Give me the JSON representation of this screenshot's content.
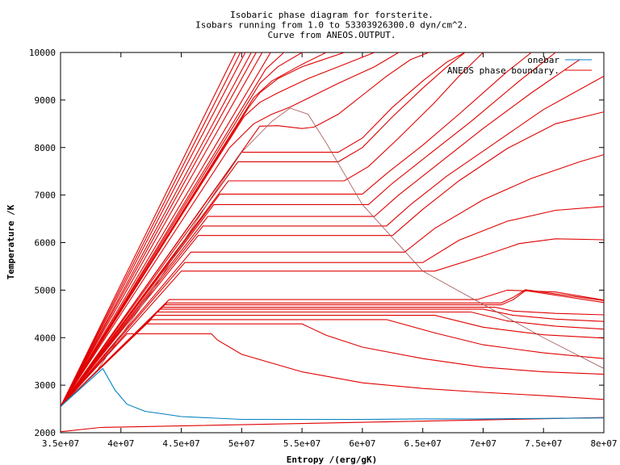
{
  "chart_data": {
    "type": "line",
    "title": [
      "Isobaric phase diagram for forsterite.",
      "Isobars running from 1.0 to 53303926300.0 dyn/cm^2.",
      "Curve from ANEOS.OUTPUT."
    ],
    "xlabel": "Entropy /(erg/gK)",
    "ylabel": "Temperature /K",
    "xlim": [
      35000000,
      80000000
    ],
    "ylim": [
      2000,
      10000
    ],
    "xticks": [
      35000000,
      40000000,
      45000000,
      50000000,
      55000000,
      60000000,
      65000000,
      70000000,
      75000000,
      80000000
    ],
    "xtick_labels": [
      "3.5e+07",
      "4e+07",
      "4.5e+07",
      "5e+07",
      "5.5e+07",
      "6e+07",
      "6.5e+07",
      "7e+07",
      "7.5e+07",
      "8e+07"
    ],
    "yticks": [
      2000,
      3000,
      4000,
      5000,
      6000,
      7000,
      8000,
      9000,
      10000
    ],
    "ytick_labels": [
      "2000",
      "3000",
      "4000",
      "5000",
      "6000",
      "7000",
      "8000",
      "9000",
      "10000"
    ],
    "legend": "top-right",
    "colors": {
      "onebar": "#0080c0",
      "isobars": "#e00000",
      "boundary": "#a05050"
    },
    "series": [
      {
        "name": "onebar",
        "x": [
          35000000,
          38500000,
          39500000,
          40500000,
          42000000,
          45000000,
          50000000,
          55000000,
          60000000,
          65000000,
          70000000,
          75000000,
          80000000
        ],
        "y": [
          2550,
          3350,
          2900,
          2600,
          2450,
          2340,
          2280,
          2280,
          2280,
          2290,
          2290,
          2300,
          2310
        ]
      },
      {
        "name": "ANEOS phase boundary.",
        "x": [
          35000000,
          38000000,
          40000000,
          42500000,
          45000000,
          47500000,
          50000000,
          52500000,
          54000000,
          55500000,
          57000000,
          60000000,
          65000000,
          70000000,
          75000000,
          80000000
        ],
        "y": [
          2550,
          3300,
          4050,
          4950,
          5950,
          6950,
          7900,
          8550,
          8830,
          8700,
          8100,
          6800,
          5400,
          4700,
          4000,
          3350
        ]
      }
    ],
    "isobars": [
      {
        "x": [
          35000000,
          38300000,
          80000000
        ],
        "y": [
          2020,
          2110,
          2320
        ]
      },
      {
        "x": [
          35000000,
          40500000,
          47500000,
          48000000,
          50000000,
          55000000,
          60000000,
          65000000,
          70000000,
          75000000,
          80000000
        ],
        "y": [
          2550,
          4080,
          4080,
          3950,
          3650,
          3280,
          3050,
          2930,
          2850,
          2780,
          2700
        ]
      },
      {
        "x": [
          35000000,
          42000000,
          55000000,
          57000000,
          60000000,
          65000000,
          70000000,
          75000000,
          80000000
        ],
        "y": [
          2550,
          4290,
          4290,
          4050,
          3800,
          3560,
          3380,
          3280,
          3230
        ]
      },
      {
        "x": [
          35000000,
          42500000,
          62000000,
          66000000,
          70000000,
          75000000,
          80000000
        ],
        "y": [
          2550,
          4380,
          4380,
          4100,
          3850,
          3680,
          3560
        ]
      },
      {
        "x": [
          35000000,
          42800000,
          66000000,
          70000000,
          75000000,
          80000000
        ],
        "y": [
          2550,
          4470,
          4470,
          4220,
          4060,
          3990
        ]
      },
      {
        "x": [
          35000000,
          43000000,
          69000000,
          72000000,
          76000000,
          80000000
        ],
        "y": [
          2550,
          4540,
          4540,
          4350,
          4240,
          4180
        ]
      },
      {
        "x": [
          35000000,
          43200000,
          70000000,
          72500000,
          76000000,
          80000000
        ],
        "y": [
          2550,
          4600,
          4600,
          4470,
          4390,
          4340
        ]
      },
      {
        "x": [
          35000000,
          43400000,
          71000000,
          72500000,
          76000000,
          80000000
        ],
        "y": [
          2550,
          4640,
          4640,
          4560,
          4510,
          4480
        ]
      },
      {
        "x": [
          35000000,
          43600000,
          71500000,
          72500000,
          73500000,
          80000000
        ],
        "y": [
          2550,
          4690,
          4690,
          4800,
          4990,
          4740
        ]
      },
      {
        "x": [
          35000000,
          43800000,
          71500000,
          72500000,
          73500000,
          80000000
        ],
        "y": [
          2550,
          4730,
          4730,
          4850,
          5010,
          4780
        ]
      },
      {
        "x": [
          35000000,
          44000000,
          69500000,
          72000000,
          76000000,
          80000000
        ],
        "y": [
          2550,
          4800,
          4800,
          5000,
          4960,
          4790
        ]
      },
      {
        "x": [
          35000000,
          45000000,
          66000000,
          70000000,
          73000000,
          76000000,
          80000000
        ],
        "y": [
          2550,
          5400,
          5400,
          5720,
          5980,
          6080,
          6060
        ]
      },
      {
        "x": [
          35000000,
          45300000,
          65000000,
          68000000,
          72000000,
          76000000,
          80000000
        ],
        "y": [
          2550,
          5580,
          5580,
          6050,
          6450,
          6680,
          6760
        ]
      },
      {
        "x": [
          35000000,
          45800000,
          63500000,
          66000000,
          70000000,
          74000000,
          78000000,
          80000000
        ],
        "y": [
          2550,
          5800,
          5800,
          6300,
          6900,
          7350,
          7700,
          7850
        ]
      },
      {
        "x": [
          35000000,
          46400000,
          62500000,
          65000000,
          68000000,
          72000000,
          76000000,
          80000000
        ],
        "y": [
          2550,
          6150,
          6150,
          6700,
          7300,
          7980,
          8500,
          8750
        ]
      },
      {
        "x": [
          35000000,
          46800000,
          62000000,
          64000000,
          67000000,
          71000000,
          75000000,
          80000000
        ],
        "y": [
          2550,
          6350,
          6350,
          6800,
          7400,
          8100,
          8800,
          9500
        ]
      },
      {
        "x": [
          35000000,
          47200000,
          61000000,
          63000000,
          66000000,
          70000000,
          74000000,
          78000000
        ],
        "y": [
          2550,
          6550,
          6550,
          7000,
          7600,
          8400,
          9150,
          9850
        ]
      },
      {
        "x": [
          35000000,
          47700000,
          60500000,
          62500000,
          65500000,
          69000000,
          73000000,
          76000000
        ],
        "y": [
          2550,
          6800,
          6800,
          7250,
          7850,
          8550,
          9400,
          10000
        ]
      },
      {
        "x": [
          35000000,
          48200000,
          60000000,
          62000000,
          65000000,
          68000000,
          72000000,
          74000000
        ],
        "y": [
          2550,
          7020,
          7020,
          7450,
          8050,
          8700,
          9600,
          10000
        ]
      },
      {
        "x": [
          35000000,
          48900000,
          58500000,
          60500000,
          63000000,
          66000000,
          68000000,
          70000000
        ],
        "y": [
          2550,
          7300,
          7300,
          7600,
          8200,
          8950,
          9500,
          10000
        ]
      },
      {
        "x": [
          35000000,
          49700000,
          58000000,
          60000000,
          62500000,
          65000000,
          67000000,
          68500000
        ],
        "y": [
          2550,
          7700,
          7700,
          8000,
          8650,
          9250,
          9700,
          10000
        ]
      },
      {
        "x": [
          35000000,
          50000000,
          58000000,
          60000000,
          62500000,
          65000000,
          67000000,
          68500000
        ],
        "y": [
          2550,
          7900,
          7900,
          8200,
          8850,
          9400,
          9800,
          10000
        ]
      },
      {
        "x": [
          35000000,
          51500000,
          53000000,
          55000000,
          56000000,
          58000000,
          60000000,
          62000000,
          64000000,
          65500000
        ],
        "y": [
          2550,
          8450,
          8460,
          8400,
          8430,
          8700,
          9100,
          9500,
          9850,
          10000
        ]
      },
      {
        "x": [
          35000000,
          49000000,
          51000000,
          52500000,
          54000000,
          56000000,
          58000000,
          61000000,
          63000000
        ],
        "y": [
          2550,
          8000,
          8500,
          8700,
          8850,
          9100,
          9350,
          9700,
          10000
        ]
      },
      {
        "x": [
          35000000,
          50200000,
          51500000,
          53000000,
          55500000,
          58500000,
          61000000
        ],
        "y": [
          2550,
          8650,
          8950,
          9150,
          9450,
          9750,
          10000
        ]
      },
      {
        "x": [
          35000000,
          50600000,
          51500000,
          53000000,
          55000000,
          58500000
        ],
        "y": [
          2550,
          8850,
          9150,
          9450,
          9700,
          10000
        ]
      },
      {
        "x": [
          35000000,
          51000000,
          52500000,
          55000000,
          57000000
        ],
        "y": [
          2550,
          9050,
          9400,
          9750,
          10000
        ]
      },
      {
        "x": [
          35000000,
          51500000,
          53000000,
          55000000
        ],
        "y": [
          2550,
          9350,
          9700,
          10000
        ]
      },
      {
        "x": [
          35000000,
          52000000,
          53500000
        ],
        "y": [
          2550,
          9650,
          10000
        ]
      },
      {
        "x": [
          35000000,
          52400000
        ],
        "y": [
          2550,
          10000
        ]
      },
      {
        "x": [
          35000000,
          51700000
        ],
        "y": [
          2550,
          10000
        ]
      },
      {
        "x": [
          35000000,
          51200000
        ],
        "y": [
          2550,
          10000
        ]
      },
      {
        "x": [
          35000000,
          50800000
        ],
        "y": [
          2550,
          10000
        ]
      },
      {
        "x": [
          35000000,
          50300000
        ],
        "y": [
          2550,
          10000
        ]
      },
      {
        "x": [
          35000000,
          49900000
        ],
        "y": [
          2550,
          10000
        ]
      },
      {
        "x": [
          35000000,
          49500000
        ],
        "y": [
          2550,
          10000
        ]
      }
    ]
  }
}
